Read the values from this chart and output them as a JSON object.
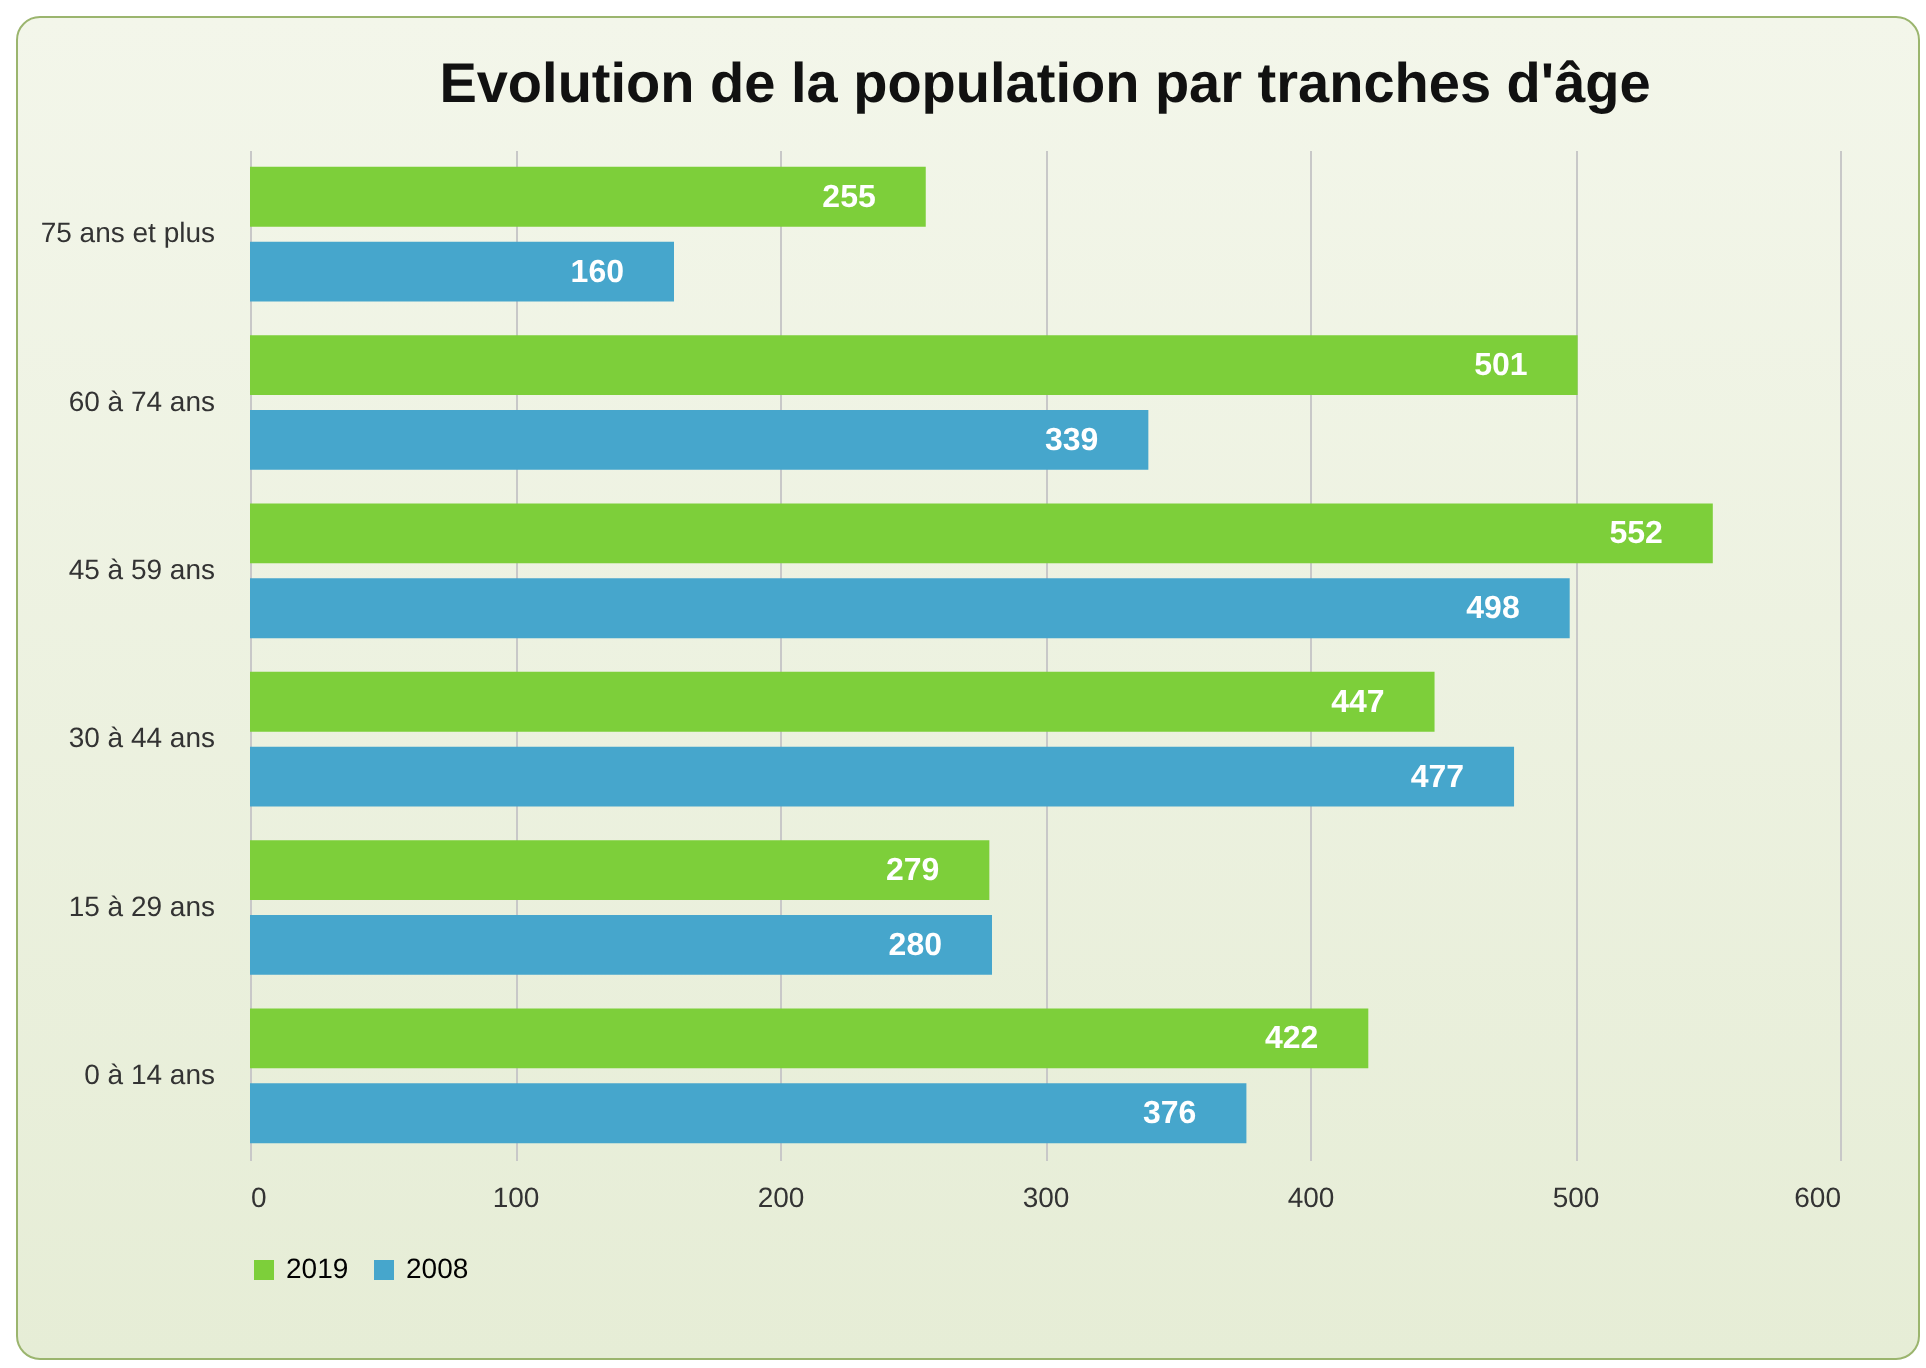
{
  "chart_data": {
    "type": "bar",
    "orientation": "horizontal",
    "title": "Evolution de la population par tranches d'âge",
    "categories": [
      "75 ans et plus",
      "60 à 74 ans",
      "45 à 59 ans",
      "30 à 44 ans",
      "15 à 29 ans",
      "0 à 14 ans"
    ],
    "series": [
      {
        "name": "2019",
        "color": "#7dcf3a",
        "values": [
          255,
          501,
          552,
          447,
          279,
          422
        ]
      },
      {
        "name": "2008",
        "color": "#46a6cc",
        "values": [
          160,
          339,
          498,
          477,
          280,
          376
        ]
      }
    ],
    "xlim": [
      0,
      600
    ],
    "xticks": [
      0,
      100,
      200,
      300,
      400,
      500,
      600
    ],
    "grid": "x",
    "legend": "bottom",
    "data_labels": true
  }
}
